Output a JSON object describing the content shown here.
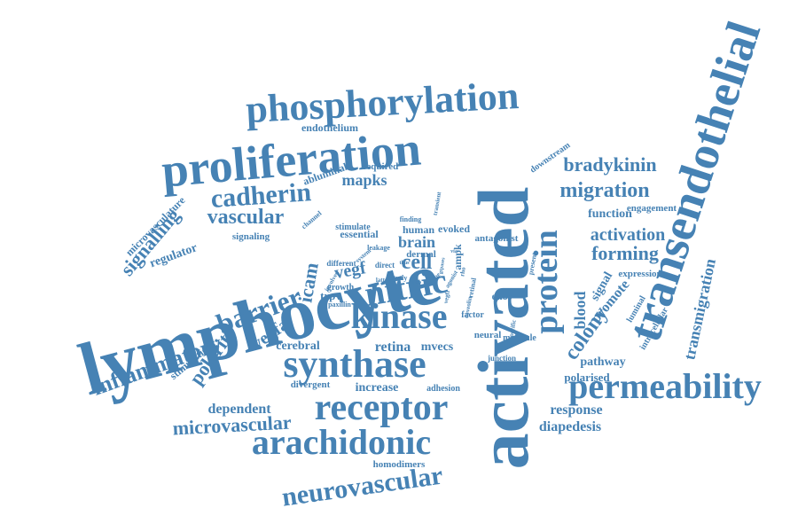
{
  "color": "#4682b4",
  "words": [
    {
      "id": "lymphocyte",
      "text": "lymphocyte"
    },
    {
      "id": "activated",
      "text": "activated"
    },
    {
      "id": "transendothelial",
      "text": "transendothelial"
    },
    {
      "id": "proliferation",
      "text": "proliferation"
    },
    {
      "id": "phosphorylation",
      "text": "phosphorylation"
    },
    {
      "id": "synthase",
      "text": "synthase"
    },
    {
      "id": "receptor",
      "text": "receptor"
    },
    {
      "id": "permeability",
      "text": "permeability"
    },
    {
      "id": "arachidonic",
      "text": "arachidonic"
    },
    {
      "id": "kinase",
      "text": "kinase"
    },
    {
      "id": "protein",
      "text": "protein"
    },
    {
      "id": "nitric",
      "text": "nitric"
    },
    {
      "id": "neurovascular",
      "text": "neurovascular"
    },
    {
      "id": "cadherin",
      "text": "cadherin"
    },
    {
      "id": "migration",
      "text": "migration"
    },
    {
      "id": "bradykinin",
      "text": "bradykinin"
    },
    {
      "id": "barrier",
      "text": "barrier"
    },
    {
      "id": "inflammatory",
      "text": "inflammatory"
    },
    {
      "id": "microvascular",
      "text": "microvascular"
    },
    {
      "id": "vascular",
      "text": "vascular"
    },
    {
      "id": "signalling",
      "text": "signalling"
    },
    {
      "id": "activation",
      "text": "activation"
    },
    {
      "id": "forming",
      "text": "forming"
    },
    {
      "id": "colony",
      "text": "colony"
    },
    {
      "id": "blood",
      "text": "blood"
    },
    {
      "id": "polarity",
      "text": "polarity"
    },
    {
      "id": "vegfa",
      "text": "vegfa"
    },
    {
      "id": "icam",
      "text": "icam"
    },
    {
      "id": "cell",
      "text": "cell"
    },
    {
      "id": "brain",
      "text": "brain"
    },
    {
      "id": "vegf",
      "text": "vegf"
    },
    {
      "id": "transmigration",
      "text": "transmigration"
    },
    {
      "id": "mapks",
      "text": "mapks"
    },
    {
      "id": "dependent",
      "text": "dependent"
    },
    {
      "id": "retina",
      "text": "retina"
    },
    {
      "id": "cerebral",
      "text": "cerebral"
    },
    {
      "id": "mvecs",
      "text": "mvecs"
    },
    {
      "id": "increase",
      "text": "increase"
    },
    {
      "id": "response",
      "text": "response"
    },
    {
      "id": "diapedesis",
      "text": "diapedesis"
    },
    {
      "id": "pathway",
      "text": "pathway"
    },
    {
      "id": "polarised",
      "text": "polarised"
    },
    {
      "id": "function",
      "text": "function"
    },
    {
      "id": "promote",
      "text": "promote"
    },
    {
      "id": "signal",
      "text": "signal"
    },
    {
      "id": "microvasculature",
      "text": "microvasculature"
    },
    {
      "id": "regulator",
      "text": "regulator"
    },
    {
      "id": "stimulation",
      "text": "stimulation"
    },
    {
      "id": "enos",
      "text": "enos"
    },
    {
      "id": "ampk",
      "text": "ampk"
    },
    {
      "id": "trpv",
      "text": "trpv"
    },
    {
      "id": "endothelium",
      "text": "endothelium"
    },
    {
      "id": "abluminal",
      "text": "abluminal"
    },
    {
      "id": "signaling",
      "text": "signaling"
    },
    {
      "id": "essential",
      "text": "essential"
    },
    {
      "id": "human",
      "text": "human"
    },
    {
      "id": "evoked",
      "text": "evoked"
    },
    {
      "id": "antagonist",
      "text": "antagonist"
    },
    {
      "id": "dermal",
      "text": "dermal"
    },
    {
      "id": "expression",
      "text": "expression"
    },
    {
      "id": "engagement",
      "text": "engagement"
    },
    {
      "id": "luminal",
      "text": "luminal"
    },
    {
      "id": "intracellular",
      "text": "intracellular"
    },
    {
      "id": "homodimers",
      "text": "homodimers"
    },
    {
      "id": "divergent",
      "text": "divergent"
    },
    {
      "id": "adhesion",
      "text": "adhesion"
    },
    {
      "id": "neural",
      "text": "neural"
    },
    {
      "id": "factor",
      "text": "factor"
    },
    {
      "id": "molecule",
      "text": "molecule"
    },
    {
      "id": "required",
      "text": "required"
    },
    {
      "id": "stimulate",
      "text": "stimulate"
    },
    {
      "id": "downstream",
      "text": "downstream"
    },
    {
      "id": "growth",
      "text": "growth"
    },
    {
      "id": "junction",
      "text": "junction"
    },
    {
      "id": "different",
      "text": "different"
    },
    {
      "id": "direct",
      "text": "direct"
    },
    {
      "id": "study",
      "text": "study"
    },
    {
      "id": "leakage",
      "text": "leakage"
    },
    {
      "id": "paxillin",
      "text": "paxillin"
    },
    {
      "id": "finding",
      "text": "finding"
    },
    {
      "id": "channel",
      "text": "channel"
    },
    {
      "id": "transient",
      "text": "transient"
    },
    {
      "id": "retinal",
      "text": "retinal"
    },
    {
      "id": "present",
      "text": "present"
    },
    {
      "id": "agonist",
      "text": "agonist"
    },
    {
      "id": "involved",
      "text": "involved"
    },
    {
      "id": "specific",
      "text": "specific"
    },
    {
      "id": "latter",
      "text": "latter"
    },
    {
      "id": "system",
      "text": "system"
    },
    {
      "id": "vegfr",
      "text": "vegfr"
    },
    {
      "id": "rho",
      "text": "rho"
    },
    {
      "id": "serine",
      "text": "serine"
    },
    {
      "id": "also",
      "text": "also"
    },
    {
      "id": "gtpases",
      "text": "gtpases"
    },
    {
      "id": "via",
      "text": "via"
    },
    {
      "id": "thus",
      "text": "thus"
    },
    {
      "id": "caveolin",
      "text": "caveolin"
    }
  ]
}
